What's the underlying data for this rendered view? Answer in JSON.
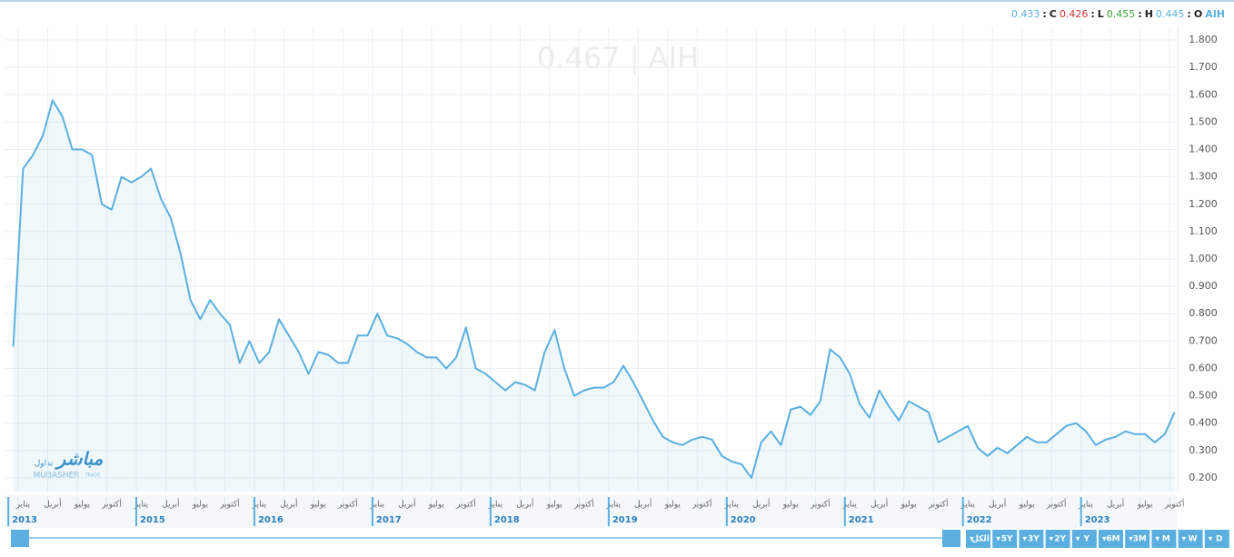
{
  "chart_data": {
    "type": "line",
    "header": {
      "items": [
        {
          "key": "C",
          "value": 0.433
        },
        {
          "key": "L",
          "value": 0.426
        },
        {
          "key": "H",
          "value": 0.455
        },
        {
          "key": "O",
          "value": 0.445
        }
      ],
      "symbol": "AIH"
    },
    "watermark": "0.467  |  AIH",
    "logo": {
      "arabic": "مباشر",
      "arabic_sub": "تداول",
      "latin": "MUBASHER",
      "latin_sub": "TRADE"
    },
    "series": [
      {
        "name": "AIH",
        "color": "#5aafe0",
        "values": [
          0.68,
          1.33,
          1.38,
          1.45,
          1.58,
          1.52,
          1.4,
          1.4,
          1.38,
          1.2,
          1.18,
          1.3,
          1.28,
          1.3,
          1.33,
          1.22,
          1.15,
          1.02,
          0.85,
          0.78,
          0.85,
          0.8,
          0.76,
          0.62,
          0.7,
          0.62,
          0.66,
          0.78,
          0.72,
          0.66,
          0.58,
          0.66,
          0.65,
          0.62,
          0.62,
          0.72,
          0.72,
          0.8,
          0.72,
          0.71,
          0.69,
          0.66,
          0.64,
          0.64,
          0.6,
          0.64,
          0.75,
          0.6,
          0.58,
          0.55,
          0.52,
          0.55,
          0.54,
          0.52,
          0.66,
          0.74,
          0.6,
          0.5,
          0.52,
          0.53,
          0.53,
          0.55,
          0.61,
          0.55,
          0.48,
          0.41,
          0.35,
          0.33,
          0.32,
          0.34,
          0.35,
          0.34,
          0.28,
          0.26,
          0.25,
          0.2,
          0.33,
          0.37,
          0.32,
          0.45,
          0.46,
          0.43,
          0.48,
          0.67,
          0.64,
          0.58,
          0.47,
          0.42,
          0.52,
          0.46,
          0.41,
          0.48,
          0.46,
          0.44,
          0.33,
          0.35,
          0.37,
          0.39,
          0.31,
          0.28,
          0.31,
          0.29,
          0.32,
          0.35,
          0.33,
          0.33,
          0.36,
          0.39,
          0.4,
          0.37,
          0.32,
          0.34,
          0.35,
          0.37,
          0.36,
          0.36,
          0.33,
          0.36,
          0.44
        ]
      }
    ],
    "x": [
      "2013-12",
      "2014-01",
      "2014-02",
      "2014-03",
      "2014-04",
      "2014-05",
      "2014-06",
      "2014-07",
      "2014-08",
      "2014-09",
      "2014-10",
      "2014-11",
      "2014-12",
      "2015-01",
      "2015-02",
      "2015-03",
      "2015-04",
      "2015-05",
      "2015-06",
      "2015-07",
      "2015-08",
      "2015-09",
      "2015-10",
      "2015-11",
      "2015-12",
      "2016-01",
      "2016-02",
      "2016-03",
      "2016-04",
      "2016-05",
      "2016-06",
      "2016-07",
      "2016-08",
      "2016-09",
      "2016-10",
      "2016-11",
      "2016-12",
      "2017-01",
      "2017-02",
      "2017-03",
      "2017-04",
      "2017-05",
      "2017-06",
      "2017-07",
      "2017-08",
      "2017-09",
      "2017-10",
      "2017-11",
      "2017-12",
      "2018-01",
      "2018-02",
      "2018-03",
      "2018-04",
      "2018-05",
      "2018-06",
      "2018-07",
      "2018-08",
      "2018-09",
      "2018-10",
      "2018-11",
      "2018-12",
      "2019-01",
      "2019-02",
      "2019-03",
      "2019-04",
      "2019-05",
      "2019-06",
      "2019-07",
      "2019-08",
      "2019-09",
      "2019-10",
      "2019-11",
      "2019-12",
      "2020-01",
      "2020-02",
      "2020-03",
      "2020-04",
      "2020-05",
      "2020-06",
      "2020-07",
      "2020-08",
      "2020-09",
      "2020-10",
      "2020-11",
      "2020-12",
      "2021-01",
      "2021-02",
      "2021-03",
      "2021-04",
      "2021-05",
      "2021-06",
      "2021-07",
      "2021-08",
      "2021-09",
      "2021-10",
      "2021-11",
      "2021-12",
      "2022-01",
      "2022-02",
      "2022-03",
      "2022-04",
      "2022-05",
      "2022-06",
      "2022-07",
      "2022-08",
      "2022-09",
      "2022-10",
      "2022-11",
      "2022-12",
      "2023-01",
      "2023-02",
      "2023-03",
      "2023-04",
      "2023-05",
      "2023-06",
      "2023-07",
      "2023-08",
      "2023-09",
      "2023-10"
    ],
    "xlim": [
      "2013-12",
      "2023-10"
    ],
    "xticks": [
      {
        "value": "2014-01",
        "label": "يناير"
      },
      {
        "value": "2014-04",
        "label": "أبريل"
      },
      {
        "value": "2014-07",
        "label": "يوليو"
      },
      {
        "value": "2014-10",
        "label": "أكتوبر"
      },
      {
        "value": "2015-01",
        "label": "يناير"
      },
      {
        "value": "2015-04",
        "label": "أبريل"
      },
      {
        "value": "2015-07",
        "label": "يوليو"
      },
      {
        "value": "2015-10",
        "label": "أكتوبر"
      },
      {
        "value": "2016-01",
        "label": "يناير"
      },
      {
        "value": "2016-04",
        "label": "أبريل"
      },
      {
        "value": "2016-07",
        "label": "يوليو"
      },
      {
        "value": "2016-10",
        "label": "أكتوبر"
      },
      {
        "value": "2017-01",
        "label": "يناير"
      },
      {
        "value": "2017-04",
        "label": "أبريل"
      },
      {
        "value": "2017-07",
        "label": "يوليو"
      },
      {
        "value": "2017-10",
        "label": "أكتوبر"
      },
      {
        "value": "2018-01",
        "label": "يناير"
      },
      {
        "value": "2018-04",
        "label": "أبريل"
      },
      {
        "value": "2018-07",
        "label": "يوليو"
      },
      {
        "value": "2018-10",
        "label": "أكتوبر"
      },
      {
        "value": "2019-01",
        "label": "يناير"
      },
      {
        "value": "2019-04",
        "label": "أبريل"
      },
      {
        "value": "2019-07",
        "label": "يوليو"
      },
      {
        "value": "2019-10",
        "label": "أكتوبر"
      },
      {
        "value": "2020-01",
        "label": "يناير"
      },
      {
        "value": "2020-04",
        "label": "أبريل"
      },
      {
        "value": "2020-07",
        "label": "يوليو"
      },
      {
        "value": "2020-10",
        "label": "أكتوبر"
      },
      {
        "value": "2021-01",
        "label": "يناير"
      },
      {
        "value": "2021-04",
        "label": "أبريل"
      },
      {
        "value": "2021-07",
        "label": "يوليو"
      },
      {
        "value": "2021-10",
        "label": "أكتوبر"
      },
      {
        "value": "2022-01",
        "label": "يناير"
      },
      {
        "value": "2022-04",
        "label": "أبريل"
      },
      {
        "value": "2022-07",
        "label": "يوليو"
      },
      {
        "value": "2022-10",
        "label": "أكتوبر"
      },
      {
        "value": "2023-01",
        "label": "يناير"
      },
      {
        "value": "2023-04",
        "label": "أبريل"
      },
      {
        "value": "2023-07",
        "label": "يوليو"
      },
      {
        "value": "2023-10",
        "label": "أكتوبر"
      }
    ],
    "year_ticks": [
      {
        "value": "2013-12",
        "label": "2013"
      },
      {
        "value": "2015-01",
        "label": "2015"
      },
      {
        "value": "2016-01",
        "label": "2016"
      },
      {
        "value": "2017-01",
        "label": "2017"
      },
      {
        "value": "2018-01",
        "label": "2018"
      },
      {
        "value": "2019-01",
        "label": "2019"
      },
      {
        "value": "2020-01",
        "label": "2020"
      },
      {
        "value": "2021-01",
        "label": "2021"
      },
      {
        "value": "2022-01",
        "label": "2022"
      },
      {
        "value": "2023-01",
        "label": "2023"
      }
    ],
    "ylim": [
      0.15,
      1.85
    ],
    "yticks": [
      {
        "value": 0.2,
        "label": "0.200"
      },
      {
        "value": 0.3,
        "label": "0.300"
      },
      {
        "value": 0.4,
        "label": "0.400"
      },
      {
        "value": 0.5,
        "label": "0.500"
      },
      {
        "value": 0.6,
        "label": "0.600"
      },
      {
        "value": 0.7,
        "label": "0.700"
      },
      {
        "value": 0.8,
        "label": "0.800"
      },
      {
        "value": 0.9,
        "label": "0.900"
      },
      {
        "value": 1.0,
        "label": "1.000"
      },
      {
        "value": 1.1,
        "label": "1.100"
      },
      {
        "value": 1.2,
        "label": "1.200"
      },
      {
        "value": 1.3,
        "label": "1.300"
      },
      {
        "value": 1.4,
        "label": "1.400"
      },
      {
        "value": 1.5,
        "label": "1.500"
      },
      {
        "value": 1.6,
        "label": "1.600"
      },
      {
        "value": 1.7,
        "label": "1.700"
      },
      {
        "value": 1.8,
        "label": "1.800"
      }
    ],
    "grid": true,
    "range_buttons": [
      "الكل",
      "5Y",
      "3Y",
      "2Y",
      "Y",
      "6M",
      "3M",
      "M",
      "W",
      "D"
    ]
  }
}
